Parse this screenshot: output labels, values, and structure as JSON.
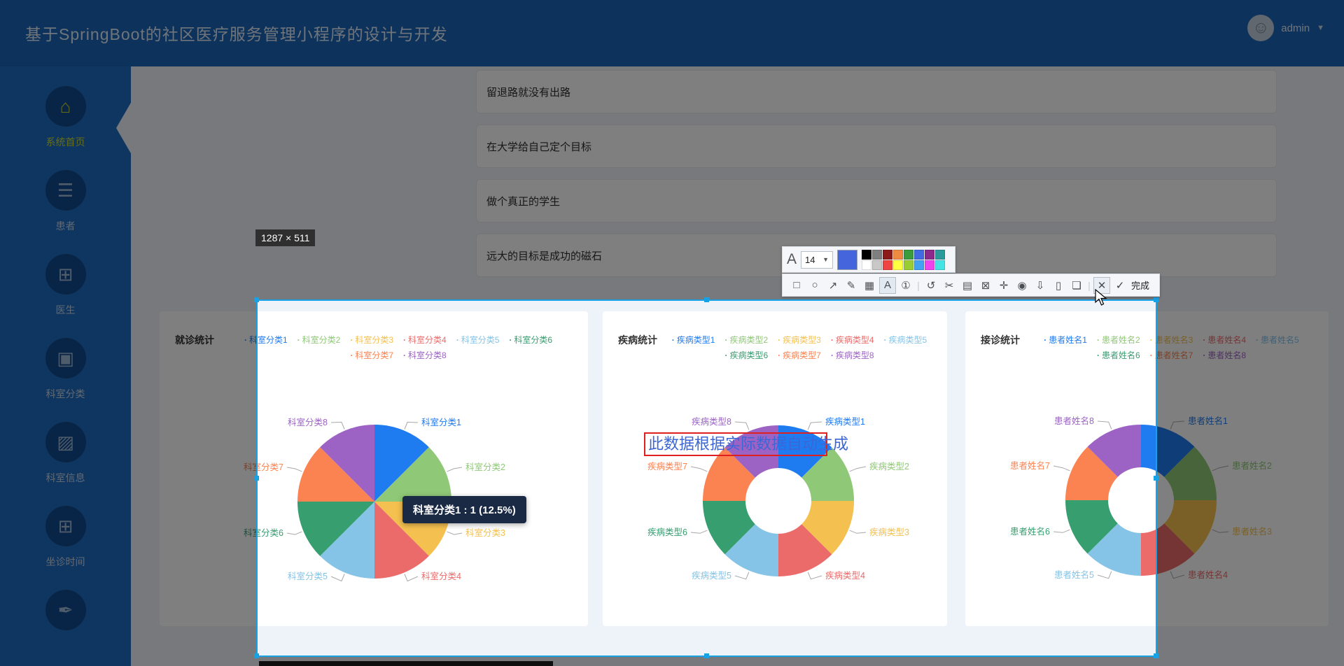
{
  "header": {
    "title": "基于SpringBoot的社区医疗服务管理小程序的设计与开发",
    "user": {
      "name": "admin"
    }
  },
  "sidebar": {
    "items": [
      {
        "label": "系统首页",
        "icon": "home-icon",
        "glyph": "⌂",
        "active": true
      },
      {
        "label": "患者",
        "icon": "sliders-icon",
        "glyph": "☰",
        "active": false
      },
      {
        "label": "医生",
        "icon": "grid-icon",
        "glyph": "⊞",
        "active": false
      },
      {
        "label": "科室分类",
        "icon": "wallet-icon",
        "glyph": "▣",
        "active": false
      },
      {
        "label": "科室信息",
        "icon": "chart-icon",
        "glyph": "▨",
        "active": false
      },
      {
        "label": "坐诊时间",
        "icon": "grid-icon",
        "glyph": "⊞",
        "active": false
      },
      {
        "label": "",
        "icon": "brush-icon",
        "glyph": "✒",
        "active": false
      }
    ]
  },
  "list_panel": {
    "items": [
      "留退路就没有出路",
      "在大学给自己定个目标",
      "做个真正的学生",
      "远大的目标是成功的磁石"
    ]
  },
  "chart_data": [
    {
      "type": "pie",
      "title": "就诊统计",
      "categories": [
        "科室分类1",
        "科室分类2",
        "科室分类3",
        "科室分类4",
        "科室分类5",
        "科室分类6",
        "科室分类7",
        "科室分类8"
      ],
      "values": [
        1,
        1,
        1,
        1,
        1,
        1,
        1,
        1
      ],
      "percent_each": "12.5%",
      "donut": false,
      "legend_position": "top",
      "colors": [
        "#1e7bf0",
        "#8fc877",
        "#f4c04f",
        "#ea6b6a",
        "#85c3e7",
        "#379e6f",
        "#fa8351",
        "#9c63c5"
      ]
    },
    {
      "type": "pie",
      "title": "疾病统计",
      "categories": [
        "疾病类型1",
        "疾病类型2",
        "疾病类型3",
        "疾病类型4",
        "疾病类型5",
        "疾病类型6",
        "疾病类型7",
        "疾病类型8"
      ],
      "values": [
        1,
        1,
        1,
        1,
        1,
        1,
        1,
        1
      ],
      "percent_each": "12.5%",
      "donut": true,
      "legend_position": "top",
      "colors": [
        "#1e7bf0",
        "#8fc877",
        "#f4c04f",
        "#ea6b6a",
        "#85c3e7",
        "#379e6f",
        "#fa8351",
        "#9c63c5"
      ]
    },
    {
      "type": "pie",
      "title": "接诊统计",
      "categories": [
        "患者姓名1",
        "患者姓名2",
        "患者姓名3",
        "患者姓名4",
        "患者姓名5",
        "患者姓名6",
        "患者姓名7",
        "患者姓名8"
      ],
      "values": [
        1,
        1,
        1,
        1,
        1,
        1,
        1,
        1
      ],
      "percent_each": "12.5%",
      "donut": true,
      "legend_position": "top",
      "colors": [
        "#1e7bf0",
        "#8fc877",
        "#f4c04f",
        "#ea6b6a",
        "#85c3e7",
        "#379e6f",
        "#fa8351",
        "#9c63c5"
      ]
    }
  ],
  "tooltip": {
    "text": "科室分类1 : 1 (12.5%)"
  },
  "annotation": {
    "text": "此数据根据实际数据自动生成",
    "box_color": "#e01f1f",
    "text_color": "#3c66d6"
  },
  "snip_tool": {
    "size_label": "1287 × 511",
    "font_icon": "A",
    "font_size_value": "14",
    "selected_color": "#4565dc",
    "palette_row1": [
      "#000000",
      "#7f7f7f",
      "#8b1a1a",
      "#ef8b3e",
      "#3b9c3b",
      "#4169e1",
      "#8b2a8b",
      "#2a9a9a"
    ],
    "palette_row2": [
      "#ffffff",
      "#c8c8c8",
      "#ef4444",
      "#ffff42",
      "#9acc33",
      "#44a0f0",
      "#ee44ee",
      "#44e4e4"
    ],
    "tools": [
      {
        "name": "rectangle-tool",
        "glyph": "□"
      },
      {
        "name": "ellipse-tool",
        "glyph": "○"
      },
      {
        "name": "arrow-tool",
        "glyph": "↗"
      },
      {
        "name": "pencil-tool",
        "glyph": "✎"
      },
      {
        "name": "mosaic-tool",
        "glyph": "▦"
      },
      {
        "name": "text-tool",
        "glyph": "A",
        "active": true
      },
      {
        "name": "step-number-tool",
        "glyph": "①"
      },
      {
        "name": "separator",
        "glyph": "|"
      },
      {
        "name": "undo-tool",
        "glyph": "↺"
      },
      {
        "name": "cut-tool",
        "glyph": "✂"
      },
      {
        "name": "ocr-tool",
        "glyph": "▤"
      },
      {
        "name": "fit-tool",
        "glyph": "⊠"
      },
      {
        "name": "pin-tool",
        "glyph": "✛"
      },
      {
        "name": "record-tool",
        "glyph": "◉"
      },
      {
        "name": "download-tool",
        "glyph": "⇩"
      },
      {
        "name": "to-mobile-tool",
        "glyph": "▯"
      },
      {
        "name": "bookmark-tool",
        "glyph": "❏"
      },
      {
        "name": "separator",
        "glyph": "|"
      },
      {
        "name": "close-tool",
        "glyph": "✕",
        "hover": true
      }
    ],
    "done_icon": "✓",
    "done_label": "完成"
  }
}
